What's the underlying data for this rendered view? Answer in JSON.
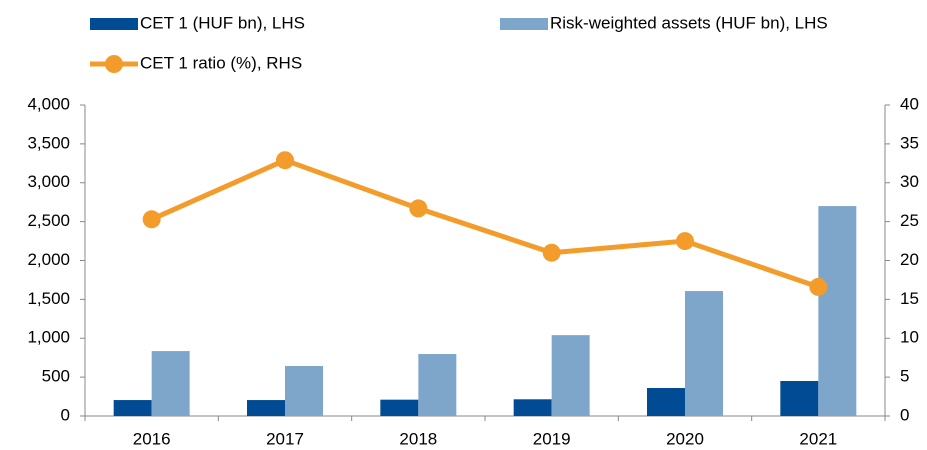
{
  "chart_data": {
    "type": "bar_line",
    "categories": [
      "2016",
      "2017",
      "2018",
      "2019",
      "2020",
      "2021"
    ],
    "series": [
      {
        "name": "CET 1 (HUF bn), LHS",
        "color": "#004b93",
        "type": "bar",
        "values": [
          205,
          205,
          210,
          215,
          360,
          450
        ]
      },
      {
        "name": "Risk-weighted assets (HUF bn), LHS",
        "color": "#7ea6cb",
        "type": "bar",
        "values": [
          835,
          643,
          797,
          1040,
          1607,
          2700
        ]
      },
      {
        "name": "CET 1 ratio (%), RHS",
        "color": "#f39c2b",
        "type": "line",
        "axis": "y2",
        "values": [
          25.3,
          32.9,
          26.7,
          21.0,
          22.5,
          16.6
        ]
      }
    ],
    "ylim": [
      0,
      4000
    ],
    "yticks": [
      0,
      500,
      {
        "value": 1000,
        "label": "1,000"
      },
      {
        "value": 1500,
        "label": "1,500"
      },
      {
        "value": 2000,
        "label": "2,000"
      },
      {
        "value": 2500,
        "label": "2,500"
      },
      {
        "value": 3000,
        "label": "3,000"
      },
      {
        "value": 3500,
        "label": "3,500"
      },
      {
        "value": 4000,
        "label": "4,000"
      }
    ],
    "y2lim": [
      0,
      40
    ],
    "y2ticks": [
      0,
      5,
      10,
      15,
      20,
      25,
      30,
      35,
      40
    ],
    "grid": false
  }
}
